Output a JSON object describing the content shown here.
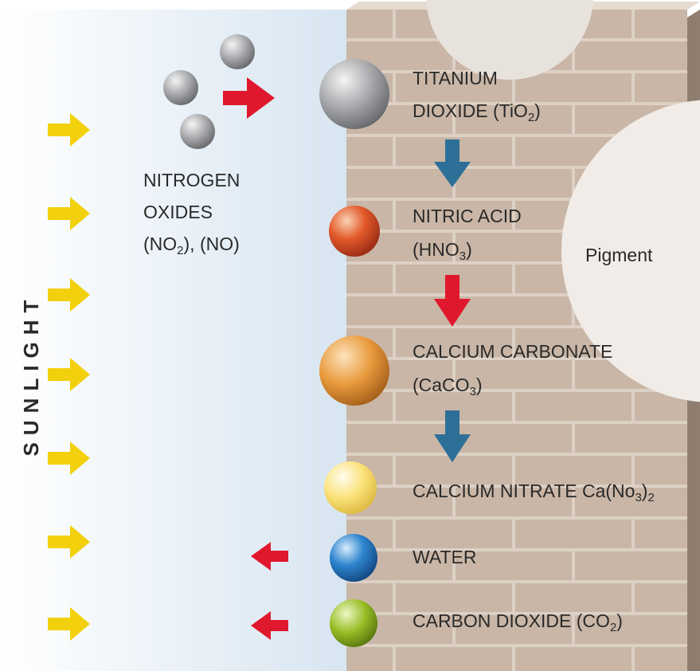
{
  "sunlight": "SUNLIGHT",
  "pigment": "Pigment",
  "nitrogen_oxides": {
    "lines": [
      [
        "NITROGEN"
      ],
      [
        "OXIDES"
      ],
      [
        "(NO",
        "2",
        "), (NO)"
      ]
    ]
  },
  "nodes": [
    {
      "lines": [
        [
          "TITANIUM"
        ],
        [
          "DIOXIDE (TiO",
          "2",
          ")"
        ]
      ]
    },
    {
      "lines": [
        [
          "NITRIC ACID"
        ],
        [
          "(HNO",
          "3",
          ")"
        ]
      ]
    },
    {
      "lines": [
        [
          "CALCIUM CARBONATE"
        ],
        [
          "(CaCO",
          "3",
          ")"
        ]
      ]
    },
    {
      "lines": [
        [
          "CALCIUM NITRATE Ca(No",
          "3",
          ")",
          "2"
        ]
      ]
    },
    {
      "lines": [
        [
          "WATER"
        ]
      ]
    },
    {
      "lines": [
        [
          "CARBON DIOXIDE (CO",
          "2",
          ")"
        ]
      ]
    }
  ]
}
